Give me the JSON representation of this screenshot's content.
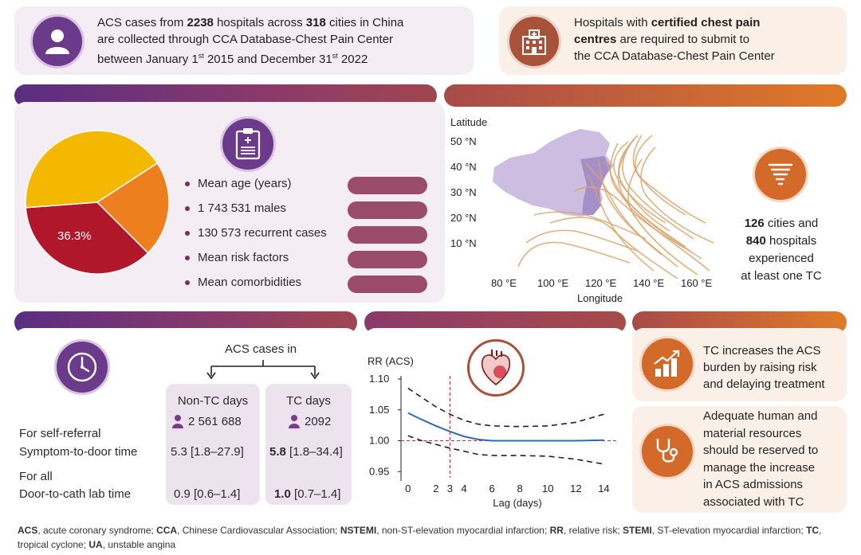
{
  "top_left": {
    "line1_pre": "ACS cases from ",
    "hospitals": "2238",
    "line1_mid": " hospitals across ",
    "cities": "318",
    "line1_post": " cities in China",
    "line2": "are collected through CCA Database-Chest Pain Center",
    "line3_pre": "between January 1",
    "sup1": "st",
    "line3_mid": " 2015 and December 31",
    "sup2": "st",
    "line3_post": " 2022"
  },
  "top_right": {
    "line1_pre": "Hospitals with ",
    "line1_bold": "certified chest pain",
    "line2_bold": "centres",
    "line2_post": " are required to submit to",
    "line3": "the CCA Database-Chest Pain Center"
  },
  "demographics": {
    "pie_label": "36.3%",
    "bullets": [
      "Mean age (years)",
      "1 743 531 males",
      "130 573 recurrent cases",
      "Mean risk factors",
      "Mean comorbidities"
    ]
  },
  "pie_data": {
    "type": "pie",
    "slices": [
      {
        "value": 36.3,
        "color": "#b0172a",
        "label": "36.3%"
      },
      {
        "value": 42.0,
        "color": "#f5b800"
      },
      {
        "value": 21.7,
        "color": "#ee7f1e"
      }
    ]
  },
  "map": {
    "ylabel": "Latitude",
    "xlabel": "Longitude",
    "lat_ticks": [
      "50 °N",
      "40 °N",
      "30 °N",
      "20 °N",
      "10 °N"
    ],
    "lon_ticks": [
      "80 °E",
      "100 °E",
      "120 °E",
      "140 °E",
      "160 °E"
    ],
    "stats": {
      "cities": "126",
      "cities_text": " cities and",
      "hospitals": "840",
      "hospitals_text": " hospitals",
      "line3": "experienced",
      "line4": "at least one TC"
    }
  },
  "table": {
    "header": "ACS cases in",
    "col1": "Non-TC days",
    "col1_count": "2 561 688",
    "col2": "TC days",
    "col2_count": "2092",
    "group1": "For self-referral",
    "row1_label": "Symptom-to-door time",
    "row1_c1": "5.3 [1.8–27.9]",
    "row1_c2_bold": "5.8",
    "row1_c2_rest": " [1.8–34.4]",
    "group2": "For all",
    "row2_label": "Door-to-cath lab time",
    "row2_c1": "0.9 [0.6–1.4]",
    "row2_c2_bold": "1.0",
    "row2_c2_rest": " [0.7–1.4]"
  },
  "chart_data": {
    "type": "line",
    "ylabel": "RR (ACS)",
    "xlabel": "Lag (days)",
    "ylim": [
      0.94,
      1.1
    ],
    "xlim": [
      -0.5,
      15
    ],
    "yticks": [
      "1.10",
      "1.05",
      "1.00",
      "0.95"
    ],
    "ytick_values": [
      1.1,
      1.05,
      1.0,
      0.95
    ],
    "xticks": [
      "0",
      "2",
      "3",
      "4",
      "6",
      "8",
      "10",
      "12",
      "14"
    ],
    "xtick_values": [
      0,
      2,
      3,
      4,
      6,
      8,
      10,
      12,
      14
    ],
    "reference_x": 3,
    "reference_y": 1.0,
    "series": [
      {
        "role": "estimate",
        "x": [
          0,
          1,
          2,
          3,
          4,
          5,
          6,
          8,
          10,
          12,
          14
        ],
        "y": [
          1.045,
          1.034,
          1.024,
          1.015,
          1.007,
          1.002,
          1.0,
          1.0,
          1.0,
          1.0,
          1.001
        ]
      },
      {
        "role": "upper",
        "x": [
          0,
          1,
          2,
          3,
          4,
          5,
          6,
          8,
          10,
          12,
          14
        ],
        "y": [
          1.085,
          1.07,
          1.055,
          1.043,
          1.033,
          1.027,
          1.024,
          1.023,
          1.024,
          1.03,
          1.043
        ]
      },
      {
        "role": "lower",
        "x": [
          0,
          1,
          2,
          3,
          4,
          5,
          6,
          8,
          10,
          12,
          14
        ],
        "y": [
          1.008,
          1.0,
          0.994,
          0.988,
          0.983,
          0.978,
          0.976,
          0.976,
          0.975,
          0.97,
          0.962
        ]
      }
    ]
  },
  "conclusion1": {
    "lines": [
      "TC increases the ACS",
      "burden by raising risk",
      "and delaying treatment"
    ]
  },
  "conclusion2": {
    "lines": [
      "Adequate human and",
      "material resources",
      "should be reserved to",
      "manage the increase",
      "in ACS admissions",
      "associated with TC"
    ]
  },
  "footnote": {
    "parts": [
      {
        "b": "ACS",
        "t": ", acute coronary syndrome; "
      },
      {
        "b": "CCA",
        "t": ", Chinese Cardiovascular Association; "
      },
      {
        "b": "NSTEMI",
        "t": ", non-ST-elevation myocardial infarction; "
      },
      {
        "b": "RR",
        "t": ", relative risk; "
      },
      {
        "b": "STEMI",
        "t": ", ST-elevation myocardial infarction; "
      },
      {
        "b": "TC",
        "t": ", tropical cyclone; "
      },
      {
        "b": "UA",
        "t": ", unstable angina"
      }
    ]
  },
  "colors": {
    "purple": "#6b3a8a",
    "orange": "#e07a28",
    "red": "#b0172a",
    "yellow": "#f5b800",
    "track": "#d9a36b",
    "estimate": "#2d6cb5"
  }
}
